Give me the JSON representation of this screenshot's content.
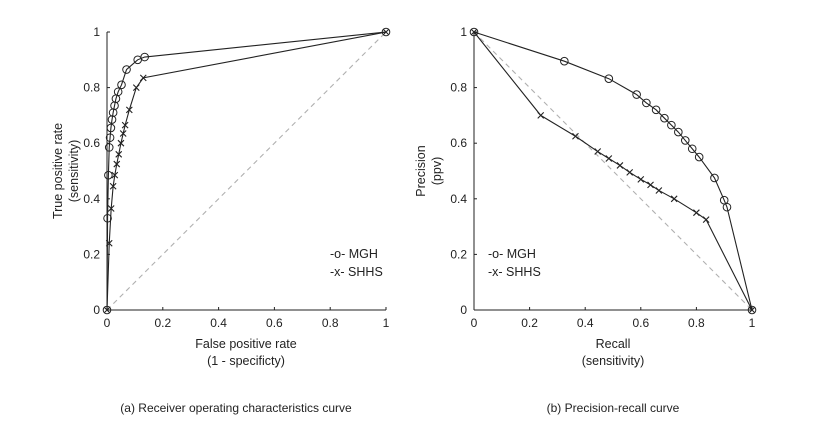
{
  "chart_data": [
    {
      "type": "line",
      "panel": "roc",
      "caption": "(a) Receiver operating characteristics curve",
      "xlabel": [
        "False positive rate",
        "(1 - specificty)"
      ],
      "ylabel": [
        "True positive rate",
        "(sensitivity)"
      ],
      "xlim": [
        0,
        1
      ],
      "ylim": [
        0,
        1
      ],
      "xticks": [
        0,
        0.2,
        0.4,
        0.6,
        0.8,
        1
      ],
      "xtick_labels": [
        "0",
        "0.2",
        "0.4",
        "0.6",
        "0.8",
        "1"
      ],
      "yticks": [
        0,
        0.2,
        0.4,
        0.6,
        0.8,
        1
      ],
      "ytick_labels": [
        "0",
        "0.2",
        "0.4",
        "0.6",
        "0.8",
        "1"
      ],
      "reference_line": {
        "style": "dashed",
        "color": "#b0b0b0",
        "x": [
          0,
          1
        ],
        "y": [
          0,
          1
        ]
      },
      "legend": {
        "position": "lower-right",
        "entries": [
          "-o- MGH",
          "-x- SHHS"
        ]
      },
      "series": [
        {
          "name": "MGH",
          "marker": "o",
          "x": [
            0,
            0.002,
            0.005,
            0.008,
            0.011,
            0.014,
            0.018,
            0.022,
            0.027,
            0.032,
            0.04,
            0.052,
            0.07,
            0.11,
            0.135,
            1
          ],
          "y": [
            0,
            0.33,
            0.485,
            0.585,
            0.62,
            0.655,
            0.685,
            0.71,
            0.735,
            0.76,
            0.785,
            0.81,
            0.865,
            0.9,
            0.91,
            1
          ]
        },
        {
          "name": "SHHS",
          "marker": "x",
          "x": [
            0,
            0.008,
            0.015,
            0.022,
            0.028,
            0.035,
            0.042,
            0.05,
            0.058,
            0.065,
            0.08,
            0.105,
            0.13,
            1
          ],
          "y": [
            0,
            0.24,
            0.365,
            0.445,
            0.485,
            0.525,
            0.56,
            0.6,
            0.635,
            0.665,
            0.72,
            0.8,
            0.835,
            1
          ]
        }
      ]
    },
    {
      "type": "line",
      "panel": "precision-recall",
      "caption": "(b) Precision-recall curve",
      "xlabel": [
        "Recall",
        "(sensitivity)"
      ],
      "ylabel": [
        "Precision",
        "(ppv)"
      ],
      "xlim": [
        0,
        1
      ],
      "ylim": [
        0,
        1
      ],
      "xticks": [
        0,
        0.2,
        0.4,
        0.6,
        0.8,
        1
      ],
      "xtick_labels": [
        "0",
        "0.2",
        "0.4",
        "0.6",
        "0.8",
        "1"
      ],
      "yticks": [
        0,
        0.2,
        0.4,
        0.6,
        0.8,
        1
      ],
      "ytick_labels": [
        "0",
        "0.2",
        "0.4",
        "0.6",
        "0.8",
        "1"
      ],
      "reference_line": {
        "style": "dashed",
        "color": "#b0b0b0",
        "x": [
          0,
          1
        ],
        "y": [
          1,
          0
        ]
      },
      "legend": {
        "position": "lower-left",
        "entries": [
          "-o- MGH",
          "-x- SHHS"
        ]
      },
      "series": [
        {
          "name": "MGH",
          "marker": "o",
          "x": [
            0,
            0.325,
            0.485,
            0.585,
            0.62,
            0.655,
            0.685,
            0.71,
            0.735,
            0.76,
            0.785,
            0.81,
            0.865,
            0.9,
            0.91,
            1
          ],
          "y": [
            1,
            0.895,
            0.832,
            0.775,
            0.745,
            0.72,
            0.69,
            0.665,
            0.64,
            0.61,
            0.58,
            0.55,
            0.475,
            0.395,
            0.37,
            0
          ]
        },
        {
          "name": "SHHS",
          "marker": "x",
          "x": [
            0,
            0.24,
            0.365,
            0.445,
            0.485,
            0.525,
            0.56,
            0.6,
            0.635,
            0.665,
            0.72,
            0.8,
            0.835,
            1
          ],
          "y": [
            1,
            0.7,
            0.625,
            0.57,
            0.545,
            0.52,
            0.495,
            0.47,
            0.45,
            0.43,
            0.4,
            0.35,
            0.325,
            0
          ]
        }
      ]
    }
  ]
}
